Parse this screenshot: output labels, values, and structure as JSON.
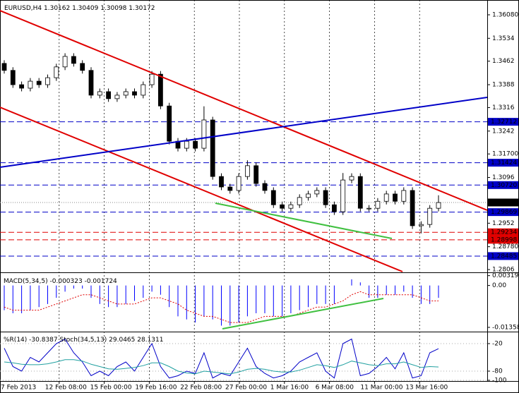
{
  "header": {
    "symbol": "EURUSD,H4",
    "open": 1.30162,
    "high": 1.30409,
    "low": 1.30098,
    "close": 1.30172
  },
  "x_labels": [
    "7 Feb 2013",
    "12 Feb 08:00",
    "15 Feb 00:00",
    "19 Feb 16:00",
    "22 Feb 08:00",
    "27 Feb 00:00",
    "1 Mar 16:00",
    "6 Mar 08:00",
    "11 Mar 00:00",
    "13 Mar 16:00"
  ],
  "chart_data": [
    {
      "type": "candlestick",
      "up_color": "#ffffff",
      "down_color": "#000000",
      "open": [
        1.3455,
        1.3433,
        1.3388,
        1.3377,
        1.3399,
        1.3388,
        1.341,
        1.3444,
        1.3477,
        1.3455,
        1.3433,
        1.3355,
        1.3366,
        1.3344,
        1.3355,
        1.3366,
        1.3355,
        1.3388,
        1.3421,
        1.3321,
        1.321,
        1.3188,
        1.321,
        1.3188,
        1.3277,
        1.3099,
        1.3066,
        1.3055,
        1.3099,
        1.3133,
        1.3077,
        1.3055,
        1.301,
        1.2999,
        1.301,
        1.3033,
        1.3044,
        1.3055,
        1.301,
        1.2988,
        1.3088,
        1.3099,
        1.2999,
        1.2999,
        1.3021,
        1.3044,
        1.3021,
        1.3055,
        1.2944,
        1.2948,
        1.2999
      ],
      "high": [
        1.3465,
        1.3443,
        1.3398,
        1.3409,
        1.3409,
        1.342,
        1.3454,
        1.3487,
        1.3487,
        1.3465,
        1.3443,
        1.3376,
        1.3376,
        1.3365,
        1.3376,
        1.3376,
        1.3398,
        1.3431,
        1.3431,
        1.3331,
        1.322,
        1.322,
        1.322,
        1.332,
        1.3287,
        1.3109,
        1.3076,
        1.3109,
        1.315,
        1.3143,
        1.3087,
        1.3065,
        1.302,
        1.302,
        1.3043,
        1.3054,
        1.3065,
        1.3065,
        1.302,
        1.311,
        1.3109,
        1.3109,
        1.3009,
        1.3031,
        1.3054,
        1.3054,
        1.3065,
        1.3065,
        1.2958,
        1.3009,
        1.304
      ],
      "low": [
        1.3423,
        1.3378,
        1.3367,
        1.3367,
        1.3378,
        1.3378,
        1.34,
        1.3434,
        1.3445,
        1.3423,
        1.3345,
        1.3345,
        1.3334,
        1.3334,
        1.3345,
        1.3345,
        1.3345,
        1.3378,
        1.3311,
        1.32,
        1.3178,
        1.3178,
        1.3178,
        1.3178,
        1.3089,
        1.3056,
        1.3045,
        1.3045,
        1.3089,
        1.3067,
        1.3045,
        1.3,
        1.2989,
        1.2989,
        1.3,
        1.3023,
        1.3034,
        1.3,
        1.2978,
        1.2978,
        1.3078,
        1.2989,
        1.2989,
        1.2989,
        1.3011,
        1.3011,
        1.3011,
        1.2934,
        1.292,
        1.2938,
        1.2989
      ],
      "close": [
        1.3433,
        1.3388,
        1.3377,
        1.3399,
        1.3388,
        1.341,
        1.3444,
        1.3477,
        1.3455,
        1.3433,
        1.3355,
        1.3366,
        1.3344,
        1.3355,
        1.3366,
        1.3355,
        1.3388,
        1.3421,
        1.3321,
        1.321,
        1.3188,
        1.321,
        1.3188,
        1.3277,
        1.3099,
        1.3066,
        1.3055,
        1.3099,
        1.3133,
        1.3077,
        1.3055,
        1.301,
        1.2999,
        1.301,
        1.3033,
        1.3044,
        1.3055,
        1.301,
        1.2988,
        1.3088,
        1.3099,
        1.2999,
        1.2999,
        1.3021,
        1.3044,
        1.3021,
        1.3055,
        1.2944,
        1.2948,
        1.2999,
        1.3017
      ],
      "ylim": [
        1.27995,
        1.36546
      ],
      "yticks": [
        {
          "value": 1.3608,
          "label": "1.36080"
        },
        1.3534,
        1.3462,
        1.3388,
        1.3316,
        1.3242,
        {
          "value": 1.317,
          "label": "1.31700"
        },
        1.3096,
        1.2952,
        {
          "value": 1.2878,
          "label": "1.28780"
        },
        1.2806
      ],
      "levels": [
        {
          "value": 1.32712,
          "color": "#0000c8"
        },
        {
          "value": 1.31424,
          "color": "#0000c8"
        },
        {
          "value": {
            "value": 1.3072,
            "label": "1.30720"
          },
          "color": "#0000c8"
        },
        {
          "value": 1.29869,
          "color": "#0000c8"
        },
        {
          "value": 1.29234,
          "color": "#e00000"
        },
        {
          "value": 1.28998,
          "color": "#e00000"
        },
        {
          "value": 1.28485,
          "color": "#0000c8"
        }
      ],
      "current_price": 1.30172
    },
    {
      "type": "macd",
      "title": "MACD(5,34,5)",
      "macd_value": -0.000323,
      "signal_value": -0.001724,
      "histogram_color": "#0000ff",
      "signal_color": "#e00000",
      "values": [
        -0.008,
        -0.009,
        -0.009,
        -0.008,
        -0.007,
        -0.006,
        -0.004,
        -0.002,
        -0.001,
        -0.001,
        -0.004,
        -0.006,
        -0.007,
        -0.007,
        -0.006,
        -0.005,
        -0.004,
        -0.002,
        -0.003,
        -0.007,
        -0.01,
        -0.011,
        -0.012,
        -0.01,
        -0.011,
        -0.013,
        -0.013,
        -0.012,
        -0.01,
        -0.009,
        -0.009,
        -0.01,
        -0.01,
        -0.009,
        -0.008,
        -0.007,
        -0.006,
        -0.006,
        -0.006,
        0.0,
        0.002,
        0.001,
        -0.004,
        -0.004,
        -0.003,
        -0.003,
        -0.002,
        -0.004,
        -0.006,
        -0.006,
        -0.004
      ],
      "signal": [
        -0.007,
        -0.008,
        -0.008,
        -0.008,
        -0.008,
        -0.007,
        -0.006,
        -0.005,
        -0.004,
        -0.003,
        -0.003,
        -0.004,
        -0.005,
        -0.006,
        -0.006,
        -0.006,
        -0.005,
        -0.004,
        -0.004,
        -0.005,
        -0.006,
        -0.008,
        -0.009,
        -0.01,
        -0.01,
        -0.011,
        -0.012,
        -0.012,
        -0.012,
        -0.011,
        -0.01,
        -0.01,
        -0.01,
        -0.01,
        -0.009,
        -0.008,
        -0.007,
        -0.007,
        -0.006,
        -0.005,
        -0.003,
        -0.002,
        -0.003,
        -0.003,
        -0.003,
        -0.003,
        -0.003,
        -0.003,
        -0.004,
        -0.005,
        -0.005
      ],
      "ylim": [
        -0.0145,
        0.0038
      ],
      "yticks": [
        0.003191,
        {
          "value": 0,
          "label": "0.00"
        },
        -0.013581
      ]
    },
    {
      "type": "oscillator",
      "title": "%R(14)",
      "wpr_value": -30.8387,
      "stoch_title": "Stoch(34,5,13)",
      "stoch_main": 29.0465,
      "stoch_signal": 28.1311,
      "ylim": [
        -100,
        0
      ],
      "yticks": [
        -20,
        -80,
        -100
      ],
      "y2lim": [
        0,
        100
      ],
      "series": [
        {
          "name": "%R(14)",
          "color": "#0000c8",
          "values": [
            -30,
            -70,
            -80,
            -50,
            -60,
            -40,
            -20,
            -10,
            -40,
            -60,
            -90,
            -80,
            -90,
            -70,
            -60,
            -80,
            -50,
            -20,
            -70,
            -95,
            -90,
            -80,
            -85,
            -40,
            -95,
            -85,
            -90,
            -60,
            -30,
            -70,
            -85,
            -95,
            -90,
            -80,
            -60,
            -50,
            -40,
            -80,
            -95,
            -20,
            -10,
            -90,
            -85,
            -70,
            -50,
            -75,
            -40,
            -95,
            -90,
            -40,
            -31
          ]
        },
        {
          "name": "Stoch(34,5,13)",
          "color": "#20a0a0",
          "axis": "y2",
          "values": [
            40,
            38,
            35,
            34,
            34,
            36,
            40,
            45,
            45,
            42,
            35,
            30,
            25,
            24,
            26,
            28,
            32,
            38,
            38,
            30,
            20,
            16,
            14,
            20,
            18,
            16,
            14,
            18,
            24,
            26,
            24,
            20,
            18,
            18,
            22,
            28,
            34,
            32,
            28,
            34,
            42,
            38,
            34,
            32,
            36,
            36,
            40,
            34,
            28,
            30,
            29
          ]
        }
      ]
    }
  ]
}
